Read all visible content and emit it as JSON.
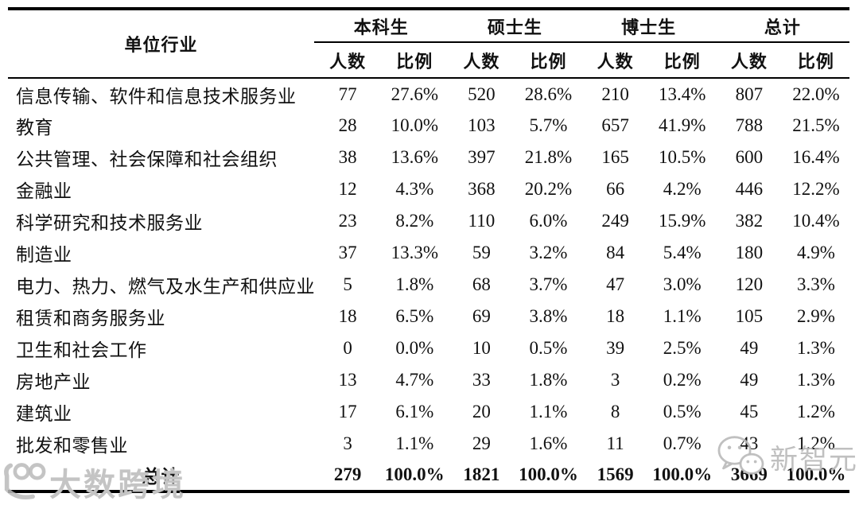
{
  "table": {
    "corner_header": "单位行业",
    "groups": [
      {
        "label": "本科生"
      },
      {
        "label": "硕士生"
      },
      {
        "label": "博士生"
      },
      {
        "label": "总计"
      }
    ],
    "subheaders": [
      "人数",
      "比例"
    ],
    "rows": [
      {
        "industry": "信息传输、软件和信息技术服务业",
        "values": [
          "77",
          "27.6%",
          "520",
          "28.6%",
          "210",
          "13.4%",
          "807",
          "22.0%"
        ]
      },
      {
        "industry": "教育",
        "values": [
          "28",
          "10.0%",
          "103",
          "5.7%",
          "657",
          "41.9%",
          "788",
          "21.5%"
        ]
      },
      {
        "industry": "公共管理、社会保障和社会组织",
        "values": [
          "38",
          "13.6%",
          "397",
          "21.8%",
          "165",
          "10.5%",
          "600",
          "16.4%"
        ]
      },
      {
        "industry": "金融业",
        "values": [
          "12",
          "4.3%",
          "368",
          "20.2%",
          "66",
          "4.2%",
          "446",
          "12.2%"
        ]
      },
      {
        "industry": "科学研究和技术服务业",
        "values": [
          "23",
          "8.2%",
          "110",
          "6.0%",
          "249",
          "15.9%",
          "382",
          "10.4%"
        ]
      },
      {
        "industry": "制造业",
        "values": [
          "37",
          "13.3%",
          "59",
          "3.2%",
          "84",
          "5.4%",
          "180",
          "4.9%"
        ]
      },
      {
        "industry": "电力、热力、燃气及水生产和供应业",
        "values": [
          "5",
          "1.8%",
          "68",
          "3.7%",
          "47",
          "3.0%",
          "120",
          "3.3%"
        ]
      },
      {
        "industry": "租赁和商务服务业",
        "values": [
          "18",
          "6.5%",
          "69",
          "3.8%",
          "18",
          "1.1%",
          "105",
          "2.9%"
        ]
      },
      {
        "industry": "卫生和社会工作",
        "values": [
          "0",
          "0.0%",
          "10",
          "0.5%",
          "39",
          "2.5%",
          "49",
          "1.3%"
        ]
      },
      {
        "industry": "房地产业",
        "values": [
          "13",
          "4.7%",
          "33",
          "1.8%",
          "3",
          "0.2%",
          "49",
          "1.3%"
        ]
      },
      {
        "industry": "建筑业",
        "values": [
          "17",
          "6.1%",
          "20",
          "1.1%",
          "8",
          "0.5%",
          "45",
          "1.2%"
        ]
      },
      {
        "industry": "批发和零售业",
        "values": [
          "3",
          "1.1%",
          "29",
          "1.6%",
          "11",
          "0.7%",
          "43",
          "1.2%"
        ]
      }
    ],
    "total_row": {
      "label": "总计",
      "values": [
        "279",
        "100.0%",
        "1821",
        "100.0%",
        "1569",
        "100.0%",
        "3669",
        "100.0%"
      ]
    }
  },
  "watermarks": {
    "bottom_left_text": "大数跨境",
    "bottom_right_text": "新智元"
  },
  "colors": {
    "text": "#111111",
    "border": "#000000",
    "watermark": "#bababa"
  }
}
